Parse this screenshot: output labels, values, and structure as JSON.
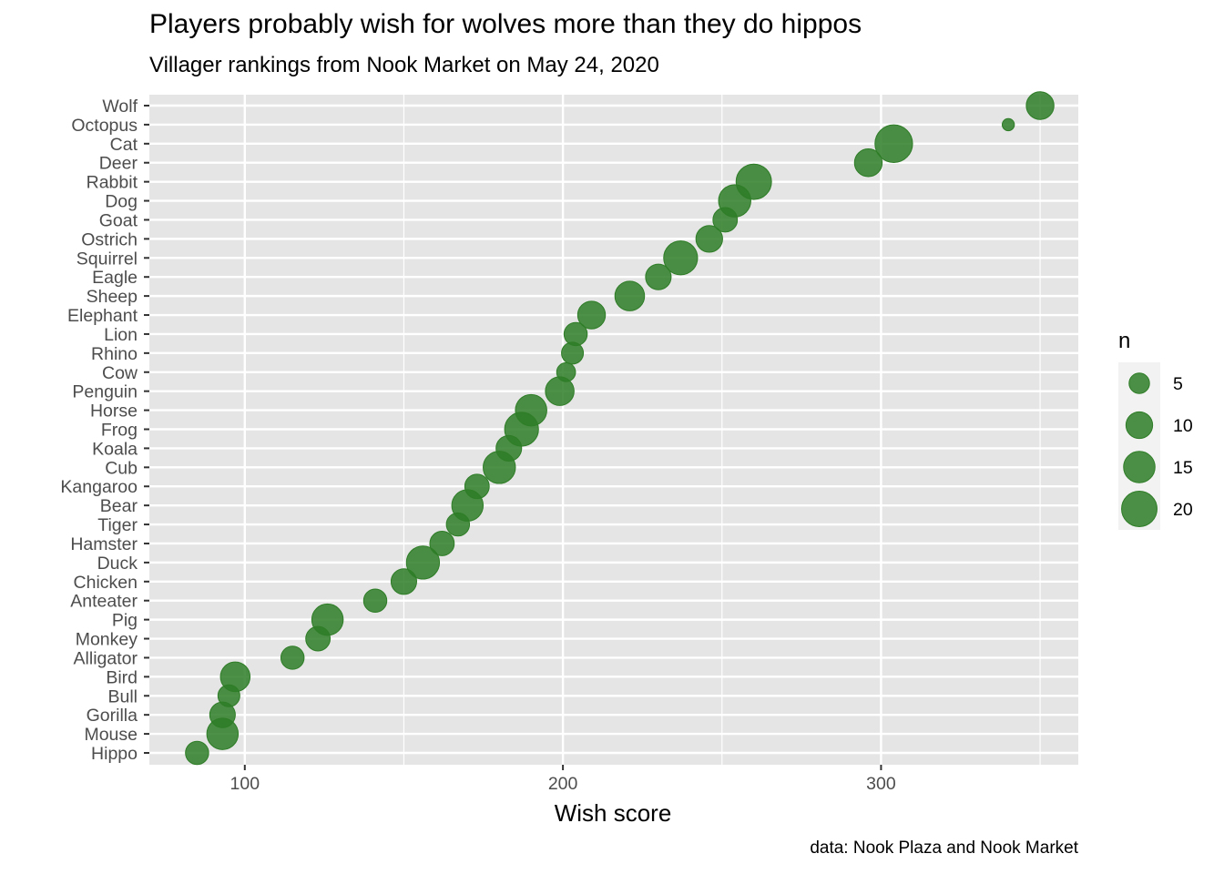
{
  "chart_data": {
    "type": "scatter",
    "title": "Players probably wish for wolves more than they do hippos",
    "subtitle": "Villager rankings from Nook Market on May 24, 2020",
    "xlabel": "Wish score",
    "ylabel": "",
    "caption": "data: Nook Plaza and Nook Market",
    "xlim": [
      70,
      362
    ],
    "x_ticks": [
      100,
      200,
      300
    ],
    "grid": true,
    "point_color": "#2e7d27",
    "panel_color": "#e5e5e5",
    "legend": {
      "title": "n",
      "placement": "right",
      "entries": [
        5,
        10,
        15,
        20
      ]
    },
    "categories": [
      "Hippo",
      "Mouse",
      "Gorilla",
      "Bull",
      "Bird",
      "Alligator",
      "Monkey",
      "Pig",
      "Anteater",
      "Chicken",
      "Duck",
      "Hamster",
      "Tiger",
      "Bear",
      "Kangaroo",
      "Cub",
      "Koala",
      "Frog",
      "Horse",
      "Penguin",
      "Cow",
      "Rhino",
      "Lion",
      "Elephant",
      "Sheep",
      "Eagle",
      "Squirrel",
      "Ostrich",
      "Goat",
      "Dog",
      "Rabbit",
      "Deer",
      "Cat",
      "Octopus",
      "Wolf"
    ],
    "points": [
      {
        "species": "Hippo",
        "x": 85,
        "n": 7
      },
      {
        "species": "Mouse",
        "x": 93,
        "n": 15
      },
      {
        "species": "Gorilla",
        "x": 93,
        "n": 9
      },
      {
        "species": "Bull",
        "x": 95,
        "n": 6
      },
      {
        "species": "Bird",
        "x": 97,
        "n": 13
      },
      {
        "species": "Alligator",
        "x": 115,
        "n": 7
      },
      {
        "species": "Monkey",
        "x": 123,
        "n": 8
      },
      {
        "species": "Pig",
        "x": 126,
        "n": 15
      },
      {
        "species": "Anteater",
        "x": 141,
        "n": 7
      },
      {
        "species": "Chicken",
        "x": 150,
        "n": 9
      },
      {
        "species": "Duck",
        "x": 156,
        "n": 17
      },
      {
        "species": "Hamster",
        "x": 162,
        "n": 8
      },
      {
        "species": "Tiger",
        "x": 167,
        "n": 7
      },
      {
        "species": "Bear",
        "x": 170,
        "n": 15
      },
      {
        "species": "Kangaroo",
        "x": 173,
        "n": 8
      },
      {
        "species": "Cub",
        "x": 180,
        "n": 16
      },
      {
        "species": "Koala",
        "x": 183,
        "n": 9
      },
      {
        "species": "Frog",
        "x": 187,
        "n": 18
      },
      {
        "species": "Horse",
        "x": 190,
        "n": 15
      },
      {
        "species": "Penguin",
        "x": 199,
        "n": 12
      },
      {
        "species": "Cow",
        "x": 201,
        "n": 4
      },
      {
        "species": "Rhino",
        "x": 203,
        "n": 6
      },
      {
        "species": "Lion",
        "x": 204,
        "n": 7
      },
      {
        "species": "Elephant",
        "x": 209,
        "n": 11
      },
      {
        "species": "Sheep",
        "x": 221,
        "n": 13
      },
      {
        "species": "Eagle",
        "x": 230,
        "n": 9
      },
      {
        "species": "Squirrel",
        "x": 237,
        "n": 18
      },
      {
        "species": "Ostrich",
        "x": 246,
        "n": 10
      },
      {
        "species": "Goat",
        "x": 251,
        "n": 8
      },
      {
        "species": "Dog",
        "x": 254,
        "n": 16
      },
      {
        "species": "Rabbit",
        "x": 260,
        "n": 20
      },
      {
        "species": "Deer",
        "x": 296,
        "n": 11
      },
      {
        "species": "Cat",
        "x": 304,
        "n": 23
      },
      {
        "species": "Octopus",
        "x": 340,
        "n": 1
      },
      {
        "species": "Wolf",
        "x": 350,
        "n": 11
      }
    ]
  }
}
